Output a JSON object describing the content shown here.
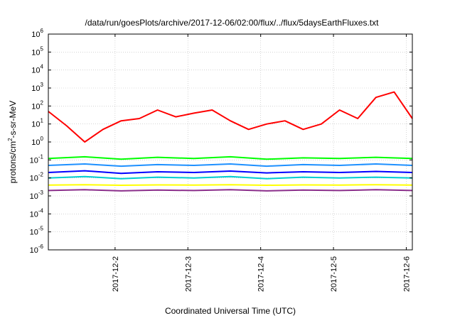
{
  "chart_data": {
    "type": "line",
    "title": "/data/run/goesPlots/archive/2017-12-06/02:00/flux/../flux/5daysEarthFluxes.txt",
    "xlabel": "Coordinated Universal Time (UTC)",
    "ylabel": "protons/cm²-s-sr-MeV",
    "ylabel_parts": {
      "pre": "protons/cm",
      "sup": "2",
      "post": "-s-sr-MeV"
    },
    "y_scale": "log",
    "ylim": [
      1e-06,
      1000000.0
    ],
    "y_ticks": [
      {
        "exp": -6,
        "label_base": "10",
        "label_exp": "-6"
      },
      {
        "exp": -5,
        "label_base": "10",
        "label_exp": "-5"
      },
      {
        "exp": -4,
        "label_base": "10",
        "label_exp": "-4"
      },
      {
        "exp": -3,
        "label_base": "10",
        "label_exp": "-3"
      },
      {
        "exp": -2,
        "label_base": "10",
        "label_exp": "-2"
      },
      {
        "exp": -1,
        "label_base": "10",
        "label_exp": "-1"
      },
      {
        "exp": 0,
        "label_base": "10",
        "label_exp": "0"
      },
      {
        "exp": 1,
        "label_base": "10",
        "label_exp": "1"
      },
      {
        "exp": 2,
        "label_base": "10",
        "label_exp": "2"
      },
      {
        "exp": 3,
        "label_base": "10",
        "label_exp": "3"
      },
      {
        "exp": 4,
        "label_base": "10",
        "label_exp": "4"
      },
      {
        "exp": 5,
        "label_base": "10",
        "label_exp": "5"
      },
      {
        "exp": 6,
        "label_base": "10",
        "label_exp": "6"
      }
    ],
    "xlim": [
      "2017-12-01T02:00",
      "2017-12-06T02:00"
    ],
    "x_ticks": [
      "2017-12-2",
      "2017-12-3",
      "2017-12-4",
      "2017-12-5",
      "2017-12-6"
    ],
    "grid": true,
    "legend": "none",
    "series": [
      {
        "color": "#ff0000",
        "x": [
          "2017-12-01T02:00",
          "2017-12-01T08:00",
          "2017-12-01T14:00",
          "2017-12-01T20:00",
          "2017-12-02T02:00",
          "2017-12-02T08:00",
          "2017-12-02T14:00",
          "2017-12-02T20:00",
          "2017-12-03T02:00",
          "2017-12-03T08:00",
          "2017-12-03T14:00",
          "2017-12-03T20:00",
          "2017-12-04T02:00",
          "2017-12-04T08:00",
          "2017-12-04T14:00",
          "2017-12-04T20:00",
          "2017-12-05T02:00",
          "2017-12-05T08:00",
          "2017-12-05T14:00",
          "2017-12-05T20:00",
          "2017-12-06T02:00"
        ],
        "values": [
          50,
          8,
          1,
          5,
          15,
          20,
          60,
          25,
          40,
          60,
          15,
          5,
          10,
          15,
          5,
          10,
          60,
          20,
          300,
          600,
          20
        ]
      },
      {
        "color": "#00ff00",
        "x": [
          "2017-12-01T02:00",
          "2017-12-01T14:00",
          "2017-12-02T02:00",
          "2017-12-02T14:00",
          "2017-12-03T02:00",
          "2017-12-03T14:00",
          "2017-12-04T02:00",
          "2017-12-04T14:00",
          "2017-12-05T02:00",
          "2017-12-05T14:00",
          "2017-12-06T02:00"
        ],
        "values": [
          0.12,
          0.15,
          0.11,
          0.14,
          0.12,
          0.15,
          0.11,
          0.13,
          0.12,
          0.14,
          0.12
        ]
      },
      {
        "color": "#1e90ff",
        "x": [
          "2017-12-01T02:00",
          "2017-12-01T14:00",
          "2017-12-02T02:00",
          "2017-12-02T14:00",
          "2017-12-03T02:00",
          "2017-12-03T14:00",
          "2017-12-04T02:00",
          "2017-12-04T14:00",
          "2017-12-05T02:00",
          "2017-12-05T14:00",
          "2017-12-06T02:00"
        ],
        "values": [
          0.05,
          0.06,
          0.045,
          0.055,
          0.05,
          0.06,
          0.045,
          0.055,
          0.05,
          0.06,
          0.05
        ]
      },
      {
        "color": "#0000ff",
        "x": [
          "2017-12-01T02:00",
          "2017-12-01T14:00",
          "2017-12-02T02:00",
          "2017-12-02T14:00",
          "2017-12-03T02:00",
          "2017-12-03T14:00",
          "2017-12-04T02:00",
          "2017-12-04T14:00",
          "2017-12-05T02:00",
          "2017-12-05T14:00",
          "2017-12-06T02:00"
        ],
        "values": [
          0.02,
          0.025,
          0.018,
          0.022,
          0.02,
          0.024,
          0.019,
          0.022,
          0.02,
          0.023,
          0.02
        ]
      },
      {
        "color": "#00ced1",
        "x": [
          "2017-12-01T02:00",
          "2017-12-01T14:00",
          "2017-12-02T02:00",
          "2017-12-02T14:00",
          "2017-12-03T02:00",
          "2017-12-03T14:00",
          "2017-12-04T02:00",
          "2017-12-04T14:00",
          "2017-12-05T02:00",
          "2017-12-05T14:00",
          "2017-12-06T02:00"
        ],
        "values": [
          0.01,
          0.012,
          0.009,
          0.011,
          0.01,
          0.012,
          0.009,
          0.011,
          0.01,
          0.011,
          0.01
        ]
      },
      {
        "color": "#ffff00",
        "x": [
          "2017-12-01T02:00",
          "2017-12-01T14:00",
          "2017-12-02T02:00",
          "2017-12-02T14:00",
          "2017-12-03T02:00",
          "2017-12-03T14:00",
          "2017-12-04T02:00",
          "2017-12-04T14:00",
          "2017-12-05T02:00",
          "2017-12-05T14:00",
          "2017-12-06T02:00"
        ],
        "values": [
          0.004,
          0.0042,
          0.0039,
          0.0041,
          0.004,
          0.0042,
          0.0039,
          0.0041,
          0.004,
          0.0042,
          0.004
        ]
      },
      {
        "color": "#8b2f8b",
        "x": [
          "2017-12-01T02:00",
          "2017-12-01T14:00",
          "2017-12-02T02:00",
          "2017-12-02T14:00",
          "2017-12-03T02:00",
          "2017-12-03T14:00",
          "2017-12-04T02:00",
          "2017-12-04T14:00",
          "2017-12-05T02:00",
          "2017-12-05T14:00",
          "2017-12-06T02:00"
        ],
        "values": [
          0.002,
          0.0022,
          0.0019,
          0.0021,
          0.002,
          0.0022,
          0.0019,
          0.0021,
          0.002,
          0.0022,
          0.002
        ]
      }
    ]
  }
}
